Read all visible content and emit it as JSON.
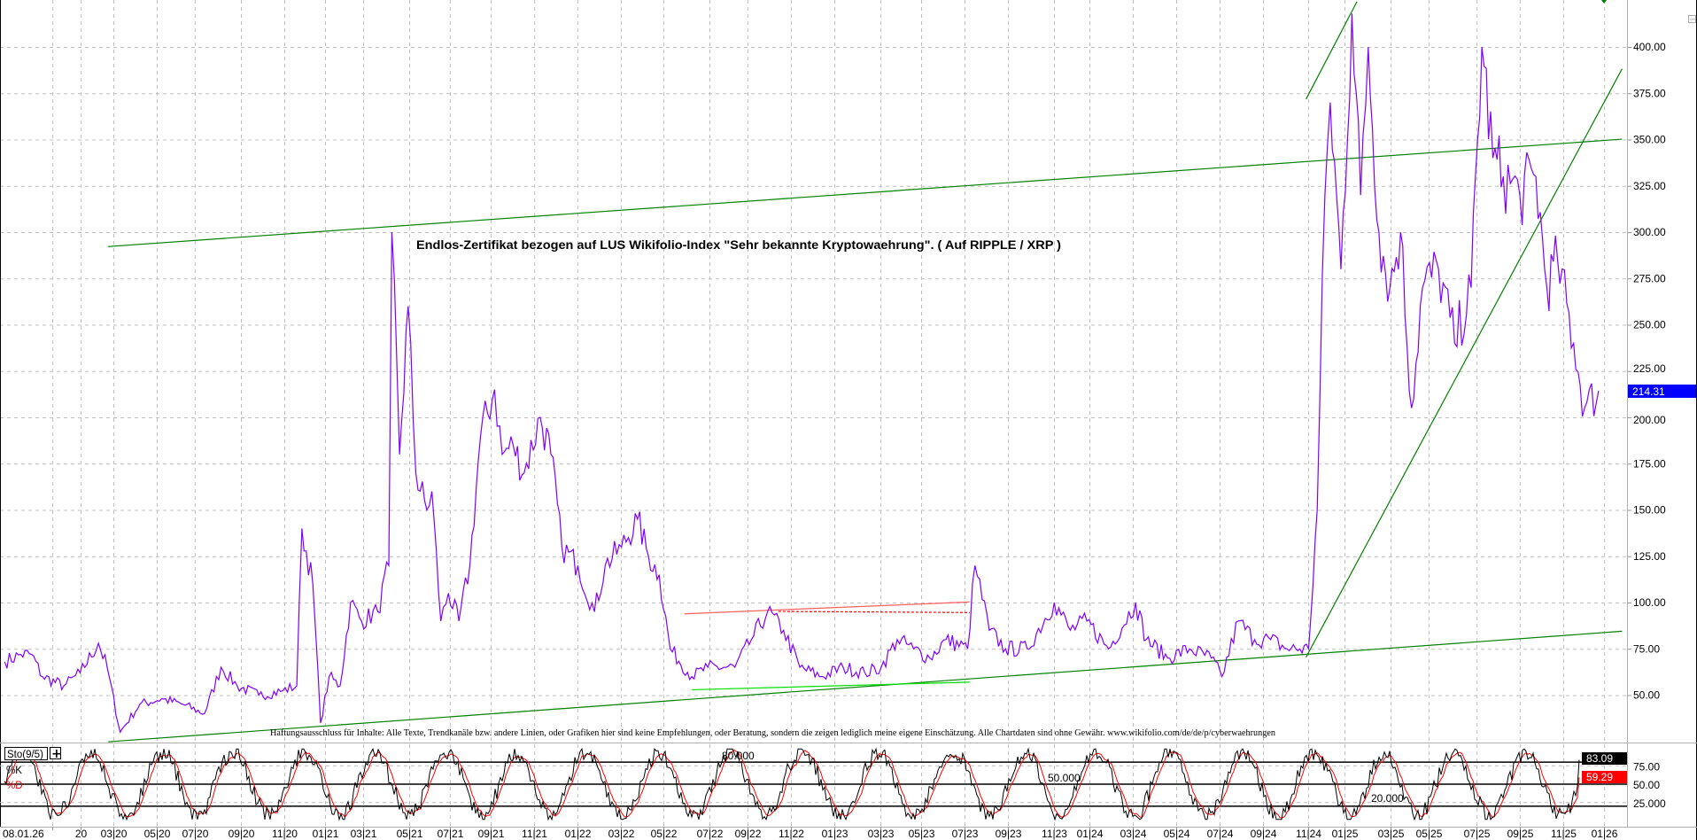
{
  "chart_data": {
    "type": "line",
    "title": "Endlos-Zertifikat bezogen auf LUS Wikifolio-Index \"Sehr bekannte Kryptowaehrung\". ( Auf RIPPLE / XRP )",
    "disclaimer": "Haftungsausschluss für Inhalte: Alle Texte, Trendkanäle bzw. andere Linien, oder Grafiken hier sind keine Empfehlungen, oder Beratung, sondern die zeigen lediglich meine eigene Einschätzung. Alle Chartdaten sind ohne Gewähr.  www.wikifolio.com/de/de/p/cyberwaehrungen",
    "x_unit": "decimal year",
    "xlim": [
      2019.74,
      2026.1
    ],
    "ylim": [
      25,
      425
    ],
    "grid": true,
    "y_ticks": [
      "50.00",
      "75.00",
      "100.00",
      "125.00",
      "150.00",
      "175.00",
      "200.00",
      "225.00",
      "250.00",
      "275.00",
      "300.00",
      "325.00",
      "350.00",
      "375.00",
      "400.00"
    ],
    "y_tick_values": [
      50,
      75,
      100,
      125,
      150,
      175,
      200,
      225,
      250,
      275,
      300,
      325,
      350,
      375,
      400
    ],
    "x_ticks": [
      {
        "label": "08.01.26",
        "t": 2019.93
      },
      {
        "label": "20",
        "t": 2020.04
      },
      {
        "label": "03|20",
        "t": 2020.17
      },
      {
        "label": "05|20",
        "t": 2020.34
      },
      {
        "label": "07|20",
        "t": 2020.49
      },
      {
        "label": "09|20",
        "t": 2020.67
      },
      {
        "label": "11|20",
        "t": 2020.84
      },
      {
        "label": "01|21",
        "t": 2021.0
      },
      {
        "label": "03|21",
        "t": 2021.15
      },
      {
        "label": "05|21",
        "t": 2021.33
      },
      {
        "label": "07|21",
        "t": 2021.49
      },
      {
        "label": "09|21",
        "t": 2021.65
      },
      {
        "label": "11|21",
        "t": 2021.82
      },
      {
        "label": "01|22",
        "t": 2021.99
      },
      {
        "label": "03|22",
        "t": 2022.16
      },
      {
        "label": "05|22",
        "t": 2022.33
      },
      {
        "label": "07|22",
        "t": 2022.51
      },
      {
        "label": "09|22",
        "t": 2022.66
      },
      {
        "label": "11|22",
        "t": 2022.83
      },
      {
        "label": "01|23",
        "t": 2023.0
      },
      {
        "label": "03|23",
        "t": 2023.18
      },
      {
        "label": "05|23",
        "t": 2023.34
      },
      {
        "label": "07|23",
        "t": 2023.51
      },
      {
        "label": "09|23",
        "t": 2023.68
      },
      {
        "label": "11|23",
        "t": 2023.86
      },
      {
        "label": "01|24",
        "t": 2024.0
      },
      {
        "label": "03|24",
        "t": 2024.17
      },
      {
        "label": "05|24",
        "t": 2024.34
      },
      {
        "label": "07|24",
        "t": 2024.51
      },
      {
        "label": "09|24",
        "t": 2024.68
      },
      {
        "label": "11|24",
        "t": 2024.86
      },
      {
        "label": "01|25",
        "t": 2025.0
      },
      {
        "label": "03|25",
        "t": 2025.18
      },
      {
        "label": "05|25",
        "t": 2025.33
      },
      {
        "label": "07|25",
        "t": 2025.52
      },
      {
        "label": "09|25",
        "t": 2025.69
      },
      {
        "label": "11|25",
        "t": 2025.86
      },
      {
        "label": "01|26",
        "t": 2026.02
      }
    ],
    "series": [
      {
        "name": "Price",
        "color": "#8000ff",
        "points": [
          [
            2019.744,
            68
          ],
          [
            2019.807,
            72
          ],
          [
            2019.849,
            72
          ],
          [
            2019.892,
            60
          ],
          [
            2019.976,
            55
          ],
          [
            2020.04,
            62
          ],
          [
            2020.112,
            78
          ],
          [
            2020.146,
            65
          ],
          [
            2020.197,
            30
          ],
          [
            2020.274,
            45
          ],
          [
            2020.359,
            48
          ],
          [
            2020.443,
            45
          ],
          [
            2020.528,
            40
          ],
          [
            2020.593,
            65
          ],
          [
            2020.656,
            55
          ],
          [
            2020.741,
            50
          ],
          [
            2020.826,
            52
          ],
          [
            2020.89,
            55
          ],
          [
            2020.91,
            140
          ],
          [
            2020.953,
            110
          ],
          [
            2020.983,
            35
          ],
          [
            2021.017,
            60
          ],
          [
            2021.06,
            55
          ],
          [
            2021.101,
            100
          ],
          [
            2021.144,
            90
          ],
          [
            2021.208,
            95
          ],
          [
            2021.251,
            120
          ],
          [
            2021.263,
            300
          ],
          [
            2021.293,
            180
          ],
          [
            2021.327,
            260
          ],
          [
            2021.357,
            170
          ],
          [
            2021.4,
            150
          ],
          [
            2021.42,
            160
          ],
          [
            2021.455,
            90
          ],
          [
            2021.485,
            105
          ],
          [
            2021.526,
            90
          ],
          [
            2021.569,
            120
          ],
          [
            2021.611,
            190
          ],
          [
            2021.666,
            215
          ],
          [
            2021.696,
            180
          ],
          [
            2021.739,
            185
          ],
          [
            2021.782,
            170
          ],
          [
            2021.845,
            200
          ],
          [
            2021.887,
            180
          ],
          [
            2021.93,
            130
          ],
          [
            2021.993,
            120
          ],
          [
            2022.058,
            95
          ],
          [
            2022.1,
            120
          ],
          [
            2022.164,
            130
          ],
          [
            2022.227,
            145
          ],
          [
            2022.27,
            125
          ],
          [
            2022.312,
            115
          ],
          [
            2022.355,
            75
          ],
          [
            2022.44,
            60
          ],
          [
            2022.503,
            65
          ],
          [
            2022.609,
            65
          ],
          [
            2022.674,
            80
          ],
          [
            2022.737,
            95
          ],
          [
            2022.8,
            85
          ],
          [
            2022.864,
            65
          ],
          [
            2022.949,
            60
          ],
          [
            2023.034,
            65
          ],
          [
            2023.119,
            62
          ],
          [
            2023.183,
            65
          ],
          [
            2023.246,
            80
          ],
          [
            2023.31,
            75
          ],
          [
            2023.374,
            70
          ],
          [
            2023.437,
            80
          ],
          [
            2023.522,
            75
          ],
          [
            2023.551,
            120
          ],
          [
            2023.607,
            85
          ],
          [
            2023.671,
            75
          ],
          [
            2023.756,
            75
          ],
          [
            2023.862,
            100
          ],
          [
            2023.925,
            85
          ],
          [
            2023.99,
            90
          ],
          [
            2024.075,
            75
          ],
          [
            2024.181,
            100
          ],
          [
            2024.223,
            80
          ],
          [
            2024.307,
            70
          ],
          [
            2024.393,
            75
          ],
          [
            2024.478,
            70
          ],
          [
            2024.52,
            60
          ],
          [
            2024.584,
            90
          ],
          [
            2024.648,
            80
          ],
          [
            2024.711,
            80
          ],
          [
            2024.775,
            75
          ],
          [
            2024.86,
            75
          ],
          [
            2024.894,
            150
          ],
          [
            2024.924,
            320
          ],
          [
            2024.945,
            370
          ],
          [
            2024.987,
            280
          ],
          [
            2025.03,
            418
          ],
          [
            2025.064,
            320
          ],
          [
            2025.094,
            400
          ],
          [
            2025.136,
            300
          ],
          [
            2025.179,
            270
          ],
          [
            2025.221,
            300
          ],
          [
            2025.264,
            205
          ],
          [
            2025.307,
            270
          ],
          [
            2025.37,
            280
          ],
          [
            2025.433,
            240
          ],
          [
            2025.498,
            270
          ],
          [
            2025.54,
            400
          ],
          [
            2025.583,
            340
          ],
          [
            2025.624,
            330
          ],
          [
            2025.689,
            320
          ],
          [
            2025.752,
            330
          ],
          [
            2025.795,
            270
          ],
          [
            2025.837,
            285
          ],
          [
            2025.9,
            240
          ],
          [
            2025.943,
            205
          ],
          [
            2025.998,
            214.31
          ]
        ]
      }
    ],
    "last_price": "214.31",
    "last_price_color": "#0000ff",
    "trendlines": [
      {
        "name": "upper-channel",
        "color": "#008000",
        "from": [
          2020.15,
          292.2
        ],
        "to": [
          2026.09,
          350.2
        ]
      },
      {
        "name": "lower-channel",
        "color": "#008000",
        "from": [
          2020.15,
          24.8
        ],
        "to": [
          2026.09,
          84.5
        ]
      },
      {
        "name": "rising-support",
        "color": "#008000",
        "from": [
          2024.85,
          70.5
        ],
        "to": [
          2026.09,
          388.2
        ]
      },
      {
        "name": "steep-trend",
        "color": "#008000",
        "from": [
          2024.85,
          371.8
        ],
        "to": [
          2025.05,
          424.5
        ]
      },
      {
        "name": "red-resistance",
        "color": "#ff6060",
        "from": [
          2022.41,
          93.9
        ],
        "to": [
          2023.53,
          100.3
        ]
      },
      {
        "name": "red-dotted",
        "color": "#ff0000",
        "dashed": true,
        "from": [
          2022.78,
          95.2
        ],
        "to": [
          2023.53,
          94.6
        ]
      },
      {
        "name": "light-green-support",
        "color": "#00e000",
        "from": [
          2022.44,
          52.9
        ],
        "to": [
          2023.53,
          57.0
        ]
      }
    ],
    "stochastic": {
      "label": "Sto(9/5)",
      "k_label": "%K",
      "d_label": "%D",
      "k_color": "#000000",
      "d_color": "#ff0000",
      "k_last": "83.09",
      "d_last": "59.29",
      "k_last_value": 83.09,
      "d_last_value": 59.29,
      "levels": [
        80,
        50,
        20
      ],
      "level_labels": [
        "80.000",
        "50.000",
        "20.000"
      ],
      "axis_labels": [
        {
          "label": "75.00",
          "v": 75
        },
        {
          "label": "50.00",
          "v": 50
        },
        {
          "label": "25.000",
          "v": 25
        }
      ],
      "ylim": [
        0,
        100
      ]
    }
  },
  "ui": {
    "add_indicator": "+",
    "collapse": "−"
  }
}
